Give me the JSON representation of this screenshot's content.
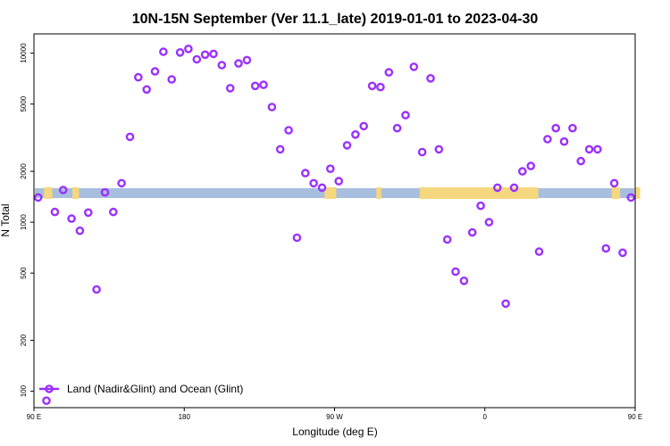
{
  "chart_data": {
    "type": "scatter",
    "title": "10N-15N September (Ver 11.1_late)   2019-01-01 to 2023-04-30",
    "xlabel": "Longitude (deg E)",
    "ylabel": "N Total",
    "y_scale": "log",
    "xlim": [
      90,
      450
    ],
    "ylim": [
      80,
      13000
    ],
    "x_ticks": [
      {
        "value": 90,
        "label": "90 E"
      },
      {
        "value": 180,
        "label": "180"
      },
      {
        "value": 270,
        "label": "90 W"
      },
      {
        "value": 360,
        "label": "0"
      },
      {
        "value": 450,
        "label": "90 E"
      },
      {
        "value": 540,
        "label": "180"
      }
    ],
    "y_ticks": [
      {
        "value": 100,
        "label": "100"
      },
      {
        "value": 200,
        "label": "200"
      },
      {
        "value": 500,
        "label": "500"
      },
      {
        "value": 1000,
        "label": "1000"
      },
      {
        "value": 2000,
        "label": "2000"
      },
      {
        "value": 5000,
        "label": "5000"
      },
      {
        "value": 10000,
        "label": "10000"
      }
    ],
    "grid": false,
    "legend": {
      "position": "bottom-left",
      "entries": [
        "Land (Nadir&Glint) and Ocean (Glint)"
      ]
    },
    "colors": {
      "marker": "#9B30FF",
      "ocean_band": "#A8BEDF",
      "land": "#F5D77E"
    },
    "series": [
      {
        "name": "Land (Nadir&Glint) and Ocean (Glint)",
        "points": [
          [
            92.5,
            1400
          ],
          [
            97.5,
            88
          ],
          [
            102.5,
            1150
          ],
          [
            107.5,
            1550
          ],
          [
            112.5,
            1050
          ],
          [
            117.5,
            890
          ],
          [
            122.5,
            1140
          ],
          [
            127.5,
            400
          ],
          [
            132.5,
            1500
          ],
          [
            137.5,
            1150
          ],
          [
            142.5,
            1700
          ],
          [
            147.5,
            3200
          ],
          [
            152.5,
            7200
          ],
          [
            157.5,
            6100
          ],
          [
            162.5,
            7800
          ],
          [
            167.5,
            10200
          ],
          [
            172.5,
            7000
          ],
          [
            177.5,
            10100
          ],
          [
            182.5,
            10600
          ],
          [
            187.5,
            9200
          ],
          [
            192.5,
            9800
          ],
          [
            197.5,
            9900
          ],
          [
            202.5,
            8500
          ],
          [
            207.5,
            6200
          ],
          [
            212.5,
            8700
          ],
          [
            217.5,
            9100
          ],
          [
            222.5,
            6400
          ],
          [
            227.5,
            6500
          ],
          [
            232.5,
            4800
          ],
          [
            237.5,
            2700
          ],
          [
            242.5,
            3500
          ],
          [
            247.5,
            810
          ],
          [
            252.5,
            1950
          ],
          [
            257.5,
            1700
          ],
          [
            262.5,
            1600
          ],
          [
            267.5,
            2070
          ],
          [
            272.5,
            1750
          ],
          [
            277.5,
            2850
          ],
          [
            282.5,
            3300
          ],
          [
            287.5,
            3700
          ],
          [
            292.5,
            6400
          ],
          [
            297.5,
            6300
          ],
          [
            302.5,
            7700
          ],
          [
            307.5,
            3600
          ],
          [
            312.5,
            4300
          ],
          [
            317.5,
            8300
          ],
          [
            322.5,
            2600
          ],
          [
            327.5,
            7100
          ],
          [
            332.5,
            2700
          ],
          [
            337.5,
            790
          ],
          [
            342.5,
            510
          ],
          [
            347.5,
            450
          ],
          [
            352.5,
            870
          ],
          [
            357.5,
            1250
          ],
          [
            362.5,
            1000
          ],
          [
            367.5,
            1600
          ],
          [
            372.5,
            330
          ],
          [
            377.5,
            1600
          ],
          [
            382.5,
            2000
          ],
          [
            387.5,
            2150
          ],
          [
            392.5,
            670
          ],
          [
            397.5,
            3100
          ],
          [
            402.5,
            3600
          ],
          [
            407.5,
            3000
          ],
          [
            412.5,
            3600
          ],
          [
            417.5,
            2300
          ],
          [
            422.5,
            2700
          ],
          [
            427.5,
            2700
          ],
          [
            432.5,
            700
          ],
          [
            437.5,
            1700
          ],
          [
            442.5,
            660
          ],
          [
            447.5,
            1400
          ]
        ]
      }
    ]
  }
}
